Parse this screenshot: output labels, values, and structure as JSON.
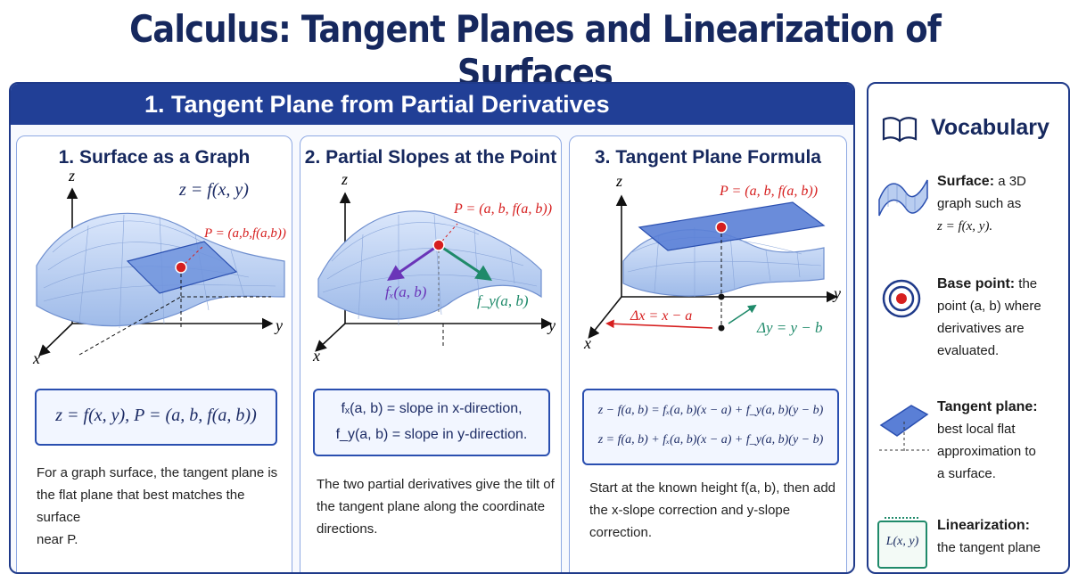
{
  "title": "Calculus: Tangent Planes and Linearization of Surfaces",
  "section": {
    "header": "1. Tangent Plane from Partial Derivatives"
  },
  "panels": [
    {
      "title": "1. Surface as a Graph",
      "labels": {
        "z_axis": "z",
        "x_axis": "x",
        "y_axis": "y",
        "surface_eq": "z = f(x, y)",
        "point": "P = (a,b,f(a,b))"
      },
      "formula": "z = f(x, y),   P = (a, b, f(a, b))",
      "description": [
        "For a graph surface, the tangent plane is",
        "the flat plane that best matches the surface",
        "near P."
      ]
    },
    {
      "title": "2. Partial Slopes at the Point",
      "labels": {
        "z_axis": "z",
        "x_axis": "x",
        "y_axis": "y",
        "point": "P = (a, b, f(a, b))",
        "fx": "fₓ(a, b)",
        "fy": "f_y(a, b)"
      },
      "formula_lines": [
        "fₓ(a, b) = slope in x-direction,",
        "f_y(a, b) = slope in y-direction."
      ],
      "description": [
        "The two partial derivatives give the tilt of",
        "the tangent plane along the coordinate",
        "directions."
      ]
    },
    {
      "title": "3. Tangent Plane Formula",
      "labels": {
        "z_axis": "z",
        "x_axis": "x",
        "y_axis": "y",
        "point": "P = (a, b, f(a, b))",
        "dx": "Δx = x − a",
        "dy": "Δy = y − b"
      },
      "formula_lines": [
        "z − f(a, b) = fₓ(a, b)(x − a) + f_y(a, b)(y − b)",
        "z = f(a, b) + fₓ(a, b)(x − a) + f_y(a, b)(y − b)"
      ],
      "description": [
        "Start at the known height f(a, b), then add",
        "the x-slope correction and y-slope",
        "correction."
      ]
    }
  ],
  "vocabulary": {
    "title": "Vocabulary",
    "items": [
      {
        "term": "Surface:",
        "text": [
          "a 3D",
          "graph such as",
          "z = f(x, y)."
        ],
        "icon": "surface-icon"
      },
      {
        "term": "Base point:",
        "text": [
          "the",
          "point (a, b) where",
          "derivatives are",
          "evaluated."
        ],
        "icon": "target-icon"
      },
      {
        "term": "Tangent plane:",
        "text": [
          "best local flat",
          "approximation to",
          "a surface."
        ],
        "icon": "plane-icon"
      },
      {
        "term": "Linearization:",
        "text": [
          "the tangent plane"
        ],
        "icon": "notebook-icon",
        "icon_label": "L(x, y)"
      }
    ]
  },
  "colors": {
    "title": "#16285e",
    "header": "#213f96",
    "surface": "#b9cdf0",
    "plane": "#5a7fd6",
    "point": "#d61f1f",
    "fx_arrow": "#6a35b8",
    "fy_arrow": "#1f8a6a"
  }
}
